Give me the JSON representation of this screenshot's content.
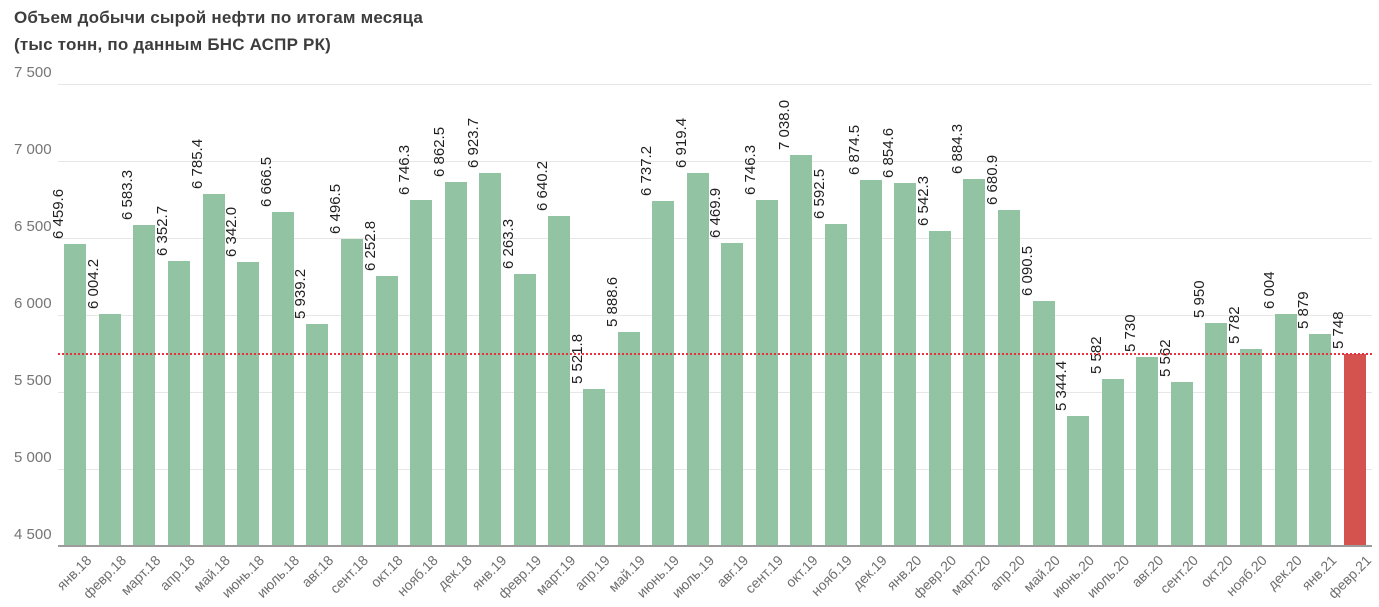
{
  "title": {
    "line1": "Объем добычи сырой нефти по итогам месяца",
    "line2": "(тыс тонн, по данным БНС АСПР РК)"
  },
  "chart_data": {
    "type": "bar",
    "title": "Объем добычи сырой нефти по итогам месяца (тыс тонн, по данным БНС АСПР РК)",
    "xlabel": "",
    "ylabel": "",
    "ylim": [
      4500,
      7500
    ],
    "yticks": [
      4500,
      5000,
      5500,
      6000,
      6500,
      7000,
      7500
    ],
    "ytick_labels": [
      "4 500",
      "5 000",
      "5 500",
      "6 000",
      "6 500",
      "7 000",
      "7 500"
    ],
    "grid": true,
    "legend": "none",
    "categories": [
      "янв.18",
      "февр.18",
      "март.18",
      "апр.18",
      "май.18",
      "июнь.18",
      "июль.18",
      "авг.18",
      "сент.18",
      "окт.18",
      "нояб.18",
      "дек.18",
      "янв.19",
      "февр.19",
      "март.19",
      "апр.19",
      "май.19",
      "июнь.19",
      "июль.19",
      "авг.19",
      "сент.19",
      "окт.19",
      "нояб.19",
      "дек.19",
      "янв.20",
      "февр.20",
      "март.20",
      "апр.20",
      "май.20",
      "июнь.20",
      "июль.20",
      "авг.20",
      "сент.20",
      "окт.20",
      "нояб.20",
      "дек.20",
      "янв.21",
      "февр.21"
    ],
    "values": [
      6459.6,
      6004.2,
      6583.3,
      6352.7,
      6785.4,
      6342.0,
      6666.5,
      5939.2,
      6496.5,
      6252.8,
      6746.3,
      6862.5,
      6923.7,
      6263.3,
      6640.2,
      5521.8,
      5888.6,
      6737.2,
      6919.4,
      6469.9,
      6746.3,
      7038.0,
      6592.5,
      6874.5,
      6854.6,
      6542.3,
      6884.3,
      6680.9,
      6090.5,
      5344.4,
      5582,
      5730,
      5562,
      5950,
      5782,
      6004,
      5879,
      5748
    ],
    "value_labels": [
      "6 459.6",
      "6 004.2",
      "6 583.3",
      "6 352.7",
      "6 785.4",
      "6 342.0",
      "6 666.5",
      "5 939.2",
      "6 496.5",
      "6 252.8",
      "6 746.3",
      "6 862.5",
      "6 923.7",
      "6 263.3",
      "6 640.2",
      "5 521.8",
      "5 888.6",
      "6 737.2",
      "6 919.4",
      "6 469.9",
      "6 746.3",
      "7 038.0",
      "6 592.5",
      "6 874.5",
      "6 854.6",
      "6 542.3",
      "6 884.3",
      "6 680.9",
      "6 090.5",
      "5 344.4",
      "5 582",
      "5 730",
      "5 562",
      "5 950",
      "5 782",
      "6 004",
      "5 879",
      "5 748"
    ],
    "colors": {
      "bar_default": "#92c4a4",
      "bar_highlight": "#d5534f",
      "reference_line": "#e8313f"
    },
    "highlight_index": 37,
    "reference_line": {
      "value": 5748,
      "style": "dotted"
    }
  }
}
